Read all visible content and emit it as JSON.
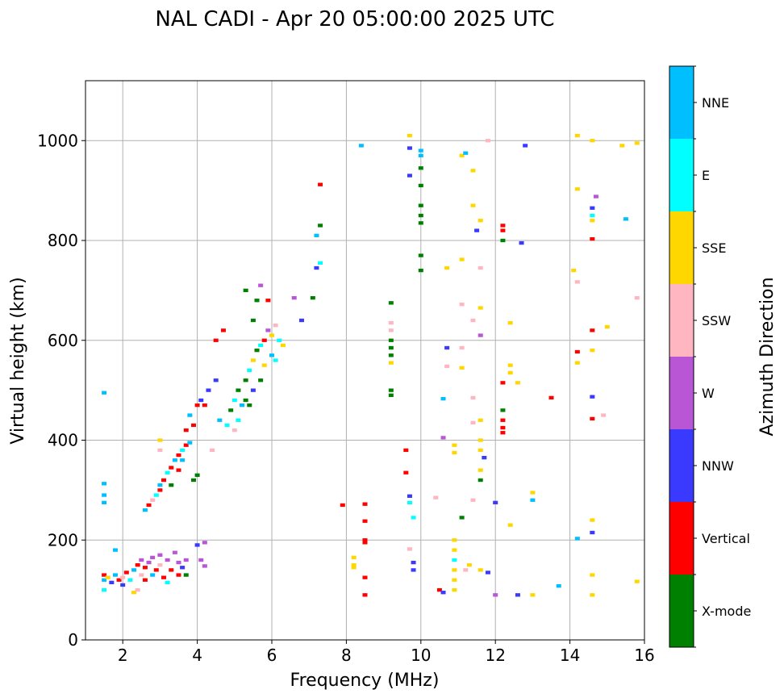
{
  "chart_data": {
    "type": "scatter",
    "title": "NAL CADI - Apr 20 05:00:00 2025 UTC",
    "xlabel": "Frequency (MHz)",
    "ylabel": "Virtual height (km)",
    "xlim": [
      1,
      16
    ],
    "ylim": [
      0,
      1120
    ],
    "xticks": [
      2,
      4,
      6,
      8,
      10,
      12,
      14,
      16
    ],
    "yticks": [
      0,
      200,
      400,
      600,
      800,
      1000
    ],
    "grid": true,
    "colorbar": {
      "label": "Azimuth Direction",
      "placement": "right",
      "categories": [
        {
          "name": "X-mode",
          "color": "#008000"
        },
        {
          "name": "Vertical",
          "color": "#ff0000"
        },
        {
          "name": "NNW",
          "color": "#3a3aff"
        },
        {
          "name": "W",
          "color": "#b856d6"
        },
        {
          "name": "SSW",
          "color": "#ffb6c1"
        },
        {
          "name": "SSE",
          "color": "#ffd700"
        },
        {
          "name": "E",
          "color": "#00ffff"
        },
        {
          "name": "NNE",
          "color": "#00bfff"
        }
      ]
    },
    "points_format": [
      "frequency_mhz",
      "height_km",
      "category_index"
    ],
    "points": [
      [
        1.5,
        130,
        1
      ],
      [
        1.5,
        120,
        7
      ],
      [
        1.5,
        100,
        6
      ],
      [
        1.6,
        125,
        5
      ],
      [
        1.7,
        115,
        2
      ],
      [
        1.8,
        130,
        7
      ],
      [
        1.9,
        120,
        1
      ],
      [
        2.0,
        125,
        4
      ],
      [
        2.1,
        135,
        1
      ],
      [
        2.2,
        120,
        6
      ],
      [
        2.3,
        140,
        7
      ],
      [
        2.4,
        150,
        1
      ],
      [
        2.5,
        160,
        3
      ],
      [
        2.5,
        130,
        4
      ],
      [
        2.6,
        145,
        1
      ],
      [
        2.7,
        155,
        3
      ],
      [
        2.8,
        165,
        3
      ],
      [
        2.8,
        130,
        7
      ],
      [
        2.9,
        140,
        1
      ],
      [
        3.0,
        170,
        3
      ],
      [
        3.0,
        150,
        4
      ],
      [
        3.1,
        125,
        1
      ],
      [
        3.2,
        160,
        3
      ],
      [
        3.3,
        140,
        1
      ],
      [
        3.4,
        175,
        3
      ],
      [
        3.5,
        155,
        3
      ],
      [
        3.5,
        130,
        1
      ],
      [
        3.6,
        145,
        2
      ],
      [
        3.7,
        160,
        3
      ],
      [
        3.7,
        130,
        0
      ],
      [
        4.1,
        160,
        3
      ],
      [
        4.2,
        195,
        3
      ],
      [
        4.2,
        148,
        3
      ],
      [
        4.0,
        190,
        2
      ],
      [
        2.3,
        95,
        5
      ],
      [
        2.4,
        100,
        4
      ],
      [
        1.8,
        180,
        7
      ],
      [
        2.0,
        110,
        2
      ],
      [
        2.6,
        120,
        1
      ],
      [
        3.2,
        115,
        6
      ],
      [
        2.6,
        260,
        7
      ],
      [
        2.7,
        270,
        1
      ],
      [
        2.8,
        280,
        4
      ],
      [
        2.9,
        290,
        6
      ],
      [
        3.0,
        300,
        1
      ],
      [
        3.0,
        310,
        7
      ],
      [
        3.1,
        320,
        1
      ],
      [
        3.2,
        335,
        6
      ],
      [
        3.3,
        345,
        1
      ],
      [
        3.4,
        360,
        7
      ],
      [
        3.5,
        370,
        1
      ],
      [
        3.6,
        380,
        6
      ],
      [
        3.7,
        390,
        1
      ],
      [
        3.8,
        395,
        7
      ],
      [
        3.3,
        310,
        0
      ],
      [
        3.5,
        340,
        1
      ],
      [
        3.0,
        400,
        5
      ],
      [
        3.0,
        380,
        4
      ],
      [
        3.6,
        360,
        7
      ],
      [
        3.9,
        320,
        0
      ],
      [
        4.0,
        330,
        0
      ],
      [
        3.9,
        430,
        1
      ],
      [
        3.8,
        450,
        7
      ],
      [
        4.0,
        470,
        1
      ],
      [
        4.1,
        480,
        2
      ],
      [
        3.7,
        420,
        1
      ],
      [
        4.3,
        500,
        2
      ],
      [
        4.2,
        470,
        1
      ],
      [
        4.5,
        520,
        2
      ],
      [
        4.5,
        600,
        1
      ],
      [
        4.7,
        620,
        1
      ],
      [
        4.6,
        440,
        7
      ],
      [
        4.8,
        430,
        6
      ],
      [
        4.4,
        380,
        4
      ],
      [
        4.9,
        460,
        0
      ],
      [
        5.0,
        480,
        6
      ],
      [
        5.1,
        500,
        0
      ],
      [
        5.2,
        470,
        7
      ],
      [
        5.3,
        520,
        0
      ],
      [
        5.4,
        540,
        6
      ],
      [
        5.5,
        560,
        5
      ],
      [
        5.6,
        580,
        0
      ],
      [
        5.7,
        590,
        6
      ],
      [
        5.8,
        600,
        1
      ],
      [
        5.9,
        620,
        3
      ],
      [
        6.0,
        610,
        5
      ],
      [
        6.1,
        630,
        4
      ],
      [
        6.2,
        600,
        6
      ],
      [
        6.1,
        560,
        6
      ],
      [
        6.0,
        570,
        7
      ],
      [
        5.8,
        550,
        5
      ],
      [
        5.7,
        520,
        0
      ],
      [
        5.5,
        500,
        2
      ],
      [
        5.3,
        480,
        0
      ],
      [
        5.1,
        440,
        6
      ],
      [
        5.0,
        420,
        4
      ],
      [
        6.3,
        590,
        5
      ],
      [
        5.5,
        640,
        0
      ],
      [
        5.6,
        680,
        0
      ],
      [
        5.3,
        700,
        0
      ],
      [
        5.7,
        710,
        3
      ],
      [
        5.9,
        680,
        1
      ],
      [
        6.6,
        685,
        3
      ],
      [
        6.8,
        640,
        2
      ],
      [
        5.4,
        470,
        0
      ],
      [
        7.2,
        810,
        7
      ],
      [
        7.3,
        830,
        0
      ],
      [
        7.3,
        912,
        1
      ],
      [
        7.2,
        745,
        2
      ],
      [
        7.3,
        755,
        6
      ],
      [
        7.1,
        685,
        0
      ],
      [
        9.2,
        675,
        0
      ],
      [
        9.2,
        635,
        4
      ],
      [
        9.2,
        620,
        4
      ],
      [
        9.2,
        600,
        0
      ],
      [
        9.2,
        585,
        0
      ],
      [
        9.2,
        570,
        0
      ],
      [
        9.2,
        555,
        5
      ],
      [
        9.2,
        500,
        0
      ],
      [
        9.2,
        490,
        0
      ],
      [
        8.4,
        990,
        7
      ],
      [
        8.5,
        272,
        1
      ],
      [
        8.5,
        238,
        1
      ],
      [
        8.5,
        200,
        1
      ],
      [
        8.5,
        195,
        1
      ],
      [
        8.5,
        125,
        1
      ],
      [
        8.5,
        90,
        1
      ],
      [
        8.2,
        165,
        5
      ],
      [
        8.2,
        150,
        5
      ],
      [
        8.2,
        145,
        5
      ],
      [
        7.9,
        270,
        1
      ],
      [
        10.0,
        980,
        7
      ],
      [
        10.0,
        970,
        7
      ],
      [
        10.0,
        945,
        0
      ],
      [
        10.0,
        910,
        0
      ],
      [
        10.0,
        870,
        0
      ],
      [
        10.0,
        850,
        0
      ],
      [
        10.0,
        835,
        0
      ],
      [
        10.0,
        770,
        0
      ],
      [
        10.0,
        740,
        0
      ],
      [
        9.7,
        1010,
        5
      ],
      [
        9.7,
        985,
        2
      ],
      [
        9.7,
        930,
        2
      ],
      [
        9.6,
        380,
        1
      ],
      [
        9.6,
        335,
        1
      ],
      [
        9.7,
        288,
        2
      ],
      [
        9.7,
        275,
        6
      ],
      [
        9.8,
        245,
        6
      ],
      [
        9.8,
        155,
        2
      ],
      [
        9.8,
        140,
        2
      ],
      [
        9.7,
        182,
        4
      ],
      [
        10.4,
        285,
        4
      ],
      [
        10.5,
        100,
        1
      ],
      [
        10.6,
        95,
        2
      ],
      [
        10.7,
        745,
        5
      ],
      [
        10.7,
        585,
        2
      ],
      [
        10.7,
        548,
        4
      ],
      [
        10.6,
        483,
        7
      ],
      [
        10.6,
        405,
        3
      ],
      [
        10.9,
        390,
        5
      ],
      [
        10.9,
        375,
        5
      ],
      [
        10.9,
        200,
        5
      ],
      [
        10.9,
        180,
        5
      ],
      [
        10.9,
        160,
        6
      ],
      [
        10.9,
        140,
        5
      ],
      [
        10.9,
        120,
        5
      ],
      [
        10.9,
        100,
        5
      ],
      [
        11.1,
        970,
        5
      ],
      [
        11.2,
        975,
        7
      ],
      [
        11.1,
        762,
        5
      ],
      [
        11.1,
        672,
        4
      ],
      [
        11.1,
        585,
        4
      ],
      [
        11.1,
        545,
        5
      ],
      [
        11.1,
        245,
        0
      ],
      [
        11.2,
        140,
        4
      ],
      [
        11.3,
        150,
        5
      ],
      [
        11.4,
        870,
        5
      ],
      [
        11.4,
        940,
        5
      ],
      [
        11.5,
        820,
        2
      ],
      [
        11.4,
        280,
        4
      ],
      [
        11.4,
        640,
        4
      ],
      [
        11.4,
        485,
        4
      ],
      [
        11.4,
        435,
        4
      ],
      [
        11.6,
        840,
        5
      ],
      [
        11.6,
        745,
        4
      ],
      [
        11.6,
        665,
        5
      ],
      [
        11.6,
        610,
        3
      ],
      [
        11.6,
        440,
        5
      ],
      [
        11.6,
        400,
        5
      ],
      [
        11.6,
        380,
        5
      ],
      [
        11.6,
        340,
        5
      ],
      [
        11.6,
        320,
        0
      ],
      [
        11.7,
        365,
        2
      ],
      [
        11.8,
        135,
        2
      ],
      [
        11.8,
        1000,
        4
      ],
      [
        11.6,
        140,
        5
      ],
      [
        12.0,
        275,
        2
      ],
      [
        12.0,
        90,
        3
      ],
      [
        12.2,
        830,
        1
      ],
      [
        12.2,
        820,
        1
      ],
      [
        12.2,
        800,
        0
      ],
      [
        12.2,
        515,
        1
      ],
      [
        12.2,
        460,
        0
      ],
      [
        12.2,
        440,
        1
      ],
      [
        12.2,
        425,
        1
      ],
      [
        12.2,
        415,
        1
      ],
      [
        12.4,
        635,
        5
      ],
      [
        12.4,
        550,
        5
      ],
      [
        12.4,
        535,
        5
      ],
      [
        12.4,
        230,
        5
      ],
      [
        12.6,
        515,
        5
      ],
      [
        12.6,
        90,
        2
      ],
      [
        12.8,
        990,
        2
      ],
      [
        12.7,
        795,
        2
      ],
      [
        13.0,
        295,
        5
      ],
      [
        13.0,
        280,
        7
      ],
      [
        13.0,
        90,
        5
      ],
      [
        13.5,
        485,
        1
      ],
      [
        13.7,
        108,
        7
      ],
      [
        14.1,
        740,
        5
      ],
      [
        14.2,
        1010,
        5
      ],
      [
        14.2,
        903,
        5
      ],
      [
        14.2,
        717,
        4
      ],
      [
        14.2,
        577,
        1
      ],
      [
        14.2,
        555,
        5
      ],
      [
        14.2,
        203,
        7
      ],
      [
        14.6,
        1000,
        5
      ],
      [
        14.7,
        888,
        3
      ],
      [
        14.6,
        865,
        2
      ],
      [
        14.6,
        850,
        6
      ],
      [
        14.6,
        840,
        5
      ],
      [
        14.6,
        803,
        1
      ],
      [
        14.6,
        620,
        1
      ],
      [
        14.6,
        580,
        5
      ],
      [
        14.6,
        487,
        2
      ],
      [
        14.6,
        443,
        1
      ],
      [
        14.6,
        240,
        5
      ],
      [
        14.6,
        215,
        2
      ],
      [
        14.6,
        130,
        5
      ],
      [
        14.6,
        90,
        5
      ],
      [
        14.9,
        450,
        4
      ],
      [
        15.0,
        627,
        5
      ],
      [
        15.4,
        990,
        5
      ],
      [
        15.5,
        843,
        7
      ],
      [
        15.8,
        995,
        5
      ],
      [
        15.8,
        685,
        4
      ],
      [
        15.8,
        117,
        5
      ],
      [
        1.5,
        495,
        7
      ],
      [
        1.5,
        313,
        7
      ],
      [
        1.5,
        290,
        7
      ],
      [
        1.5,
        275,
        7
      ]
    ]
  }
}
